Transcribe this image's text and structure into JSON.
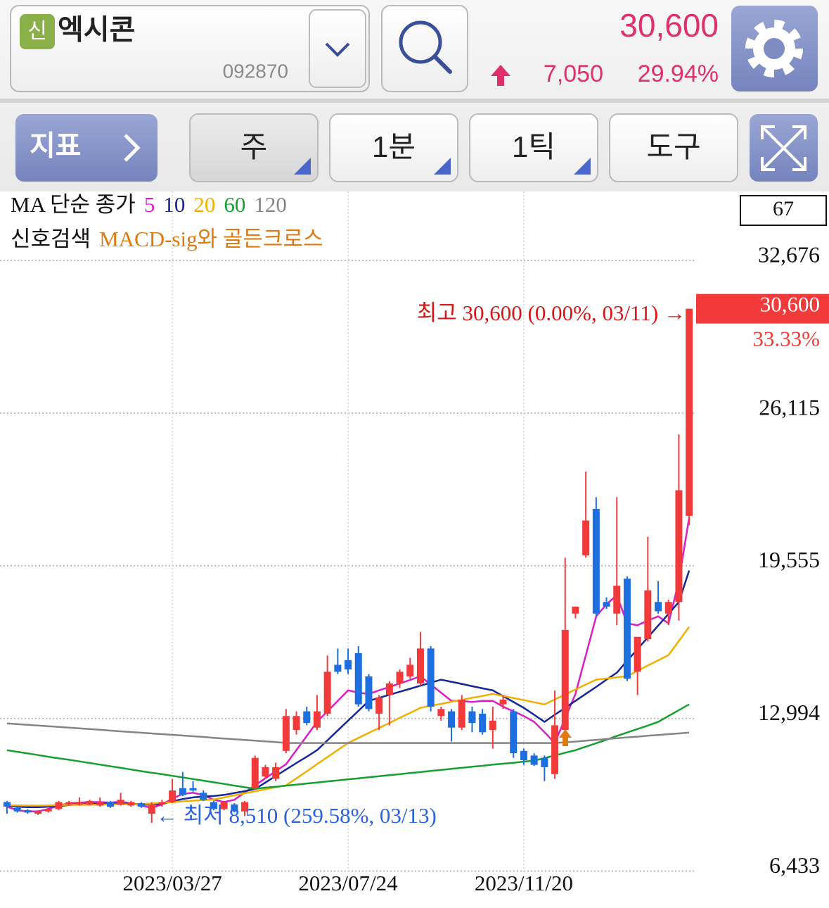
{
  "header": {
    "badge": "신",
    "name": "엑시콘",
    "code": "092870",
    "price": "30,600",
    "change": "7,050",
    "change_rate": "29.94%"
  },
  "toolbar": {
    "indicator": "지표",
    "buttons": [
      "주",
      "1분",
      "1틱",
      "도구"
    ]
  },
  "chart_data": {
    "type": "candlestick",
    "ma_label": "MA 단순 종가",
    "signal_label": "신호검색",
    "signal_name": "MACD-sig와 골든크로스",
    "visible_count": 67,
    "high_label": "최고 30,600 (0.00%, 03/11) →",
    "low_label": "← 최저 8,510 (259.58%, 03/13)",
    "last_price": {
      "value": 30600,
      "label": "30,600"
    },
    "last_change": "33.33%",
    "up_color": "#f23a3a",
    "down_color": "#1d6fe0",
    "grid": true,
    "ylim": [
      5000,
      35640
    ],
    "yticks": [
      {
        "value": 32676,
        "label": "32,676"
      },
      {
        "value": 26115,
        "label": "26,115"
      },
      {
        "value": 19555,
        "label": "19,555"
      },
      {
        "value": 12994,
        "label": "12,994"
      },
      {
        "value": 6433,
        "label": "6,433"
      }
    ],
    "categories": [
      null,
      null,
      null,
      null,
      null,
      null,
      null,
      null,
      null,
      null,
      null,
      null,
      null,
      null,
      null,
      null,
      "2023/03/27",
      null,
      null,
      null,
      null,
      null,
      null,
      null,
      null,
      null,
      null,
      null,
      null,
      null,
      null,
      null,
      null,
      "2023/07/24",
      null,
      null,
      null,
      null,
      null,
      null,
      null,
      null,
      null,
      null,
      null,
      null,
      null,
      null,
      null,
      null,
      "2023/11/20",
      null,
      null,
      null,
      null,
      null,
      null,
      null,
      null,
      null,
      null,
      null,
      null,
      null,
      null,
      null,
      null
    ],
    "open": [
      9400,
      9150,
      9050,
      8900,
      9000,
      9100,
      9300,
      9300,
      9300,
      9250,
      9400,
      9300,
      9250,
      9350,
      8900,
      9300,
      9400,
      10000,
      10000,
      9800,
      9400,
      9100,
      9300,
      9000,
      10000,
      10500,
      10400,
      11600,
      12500,
      13300,
      12600,
      13200,
      15300,
      15500,
      15800,
      14800,
      13200,
      14000,
      14500,
      14800,
      14500,
      16000,
      13100,
      13300,
      12600,
      13300,
      13200,
      12500,
      13600,
      13300,
      11600,
      11400,
      11300,
      10600,
      12500,
      17500,
      20000,
      22000,
      18000,
      17500,
      19000,
      15000,
      16400,
      18000,
      17500,
      18000,
      21700
    ],
    "high": [
      9450,
      9200,
      9100,
      9050,
      9150,
      9450,
      9450,
      9600,
      9500,
      9600,
      9450,
      9800,
      9450,
      9400,
      9400,
      9500,
      10400,
      10700,
      10300,
      9900,
      9450,
      9450,
      9350,
      9450,
      11400,
      11000,
      11100,
      13400,
      13300,
      13500,
      14000,
      15700,
      16000,
      16000,
      16100,
      14900,
      14000,
      14600,
      15100,
      15600,
      16700,
      16100,
      13500,
      13400,
      14000,
      13500,
      13400,
      13500,
      14000,
      13400,
      11700,
      11500,
      11400,
      14200,
      19900,
      17800,
      23600,
      22500,
      18200,
      22500,
      19100,
      16500,
      20800,
      18900,
      18100,
      25200,
      30600
    ],
    "low": [
      8900,
      8950,
      8900,
      8850,
      8950,
      9050,
      9250,
      9250,
      9250,
      9200,
      9150,
      9250,
      9200,
      9150,
      8510,
      9200,
      9350,
      9650,
      9850,
      9450,
      9050,
      9050,
      8950,
      8800,
      9950,
      10400,
      10300,
      11500,
      12300,
      12700,
      12500,
      13100,
      14900,
      14900,
      13500,
      13300,
      12500,
      12700,
      14300,
      14700,
      14400,
      13300,
      12900,
      12000,
      12500,
      12400,
      12300,
      11700,
      13400,
      11300,
      11000,
      10950,
      10300,
      10400,
      12300,
      17300,
      19900,
      17400,
      17700,
      17000,
      14600,
      14000,
      16300,
      17500,
      17000,
      17200,
      21300
    ],
    "close": [
      9200,
      9000,
      8950,
      9000,
      9100,
      9400,
      9400,
      9400,
      9450,
      9400,
      9200,
      9500,
      9400,
      9200,
      9300,
      9400,
      9900,
      9700,
      9900,
      9500,
      9100,
      9400,
      9000,
      9400,
      11300,
      10900,
      10900,
      13100,
      13100,
      12800,
      13300,
      15000,
      15000,
      15100,
      13600,
      13400,
      13900,
      14500,
      15000,
      15300,
      16000,
      13500,
      13400,
      12600,
      13800,
      12800,
      12400,
      12900,
      13800,
      11500,
      11200,
      11000,
      10900,
      12700,
      16800,
      17800,
      21500,
      17500,
      17800,
      18700,
      14700,
      16500,
      18500,
      17600,
      18000,
      22800,
      30600
    ],
    "series": [
      {
        "name": "5",
        "color": "#d81fc8",
        "values": [
          9200,
          9050,
          9000,
          9000,
          9100,
          9250,
          9350,
          9380,
          9400,
          9400,
          9380,
          9420,
          9350,
          9250,
          9150,
          9300,
          9550,
          9750,
          9800,
          9700,
          9500,
          9400,
          9500,
          9815,
          10120,
          10420,
          10730,
          11030,
          11640,
          12240,
          12850,
          13300,
          13750,
          14200,
          14100,
          14050,
          14200,
          14350,
          14500,
          14650,
          14810,
          14450,
          14100,
          13750,
          13750,
          13700,
          13750,
          13750,
          13500,
          13300,
          13100,
          12850,
          12400,
          11940,
          13000,
          14050,
          15700,
          17380,
          17900,
          18290,
          17080,
          17000,
          17200,
          17380,
          17080,
          18900,
          21620
        ]
      },
      {
        "name": "10",
        "color": "#16269a",
        "values": [
          9250,
          9200,
          9180,
          9180,
          9200,
          9230,
          9270,
          9300,
          9320,
          9330,
          9340,
          9340,
          9330,
          9300,
          9280,
          9320,
          9430,
          9530,
          9600,
          9640,
          9660,
          9710,
          9790,
          9870,
          9960,
          10240,
          10520,
          10800,
          11080,
          11350,
          11630,
          12050,
          12480,
          12900,
          13320,
          13750,
          13880,
          14010,
          14140,
          14270,
          14400,
          14530,
          14660,
          14570,
          14480,
          14380,
          14290,
          14200,
          13950,
          13700,
          13450,
          13150,
          12850,
          13150,
          13450,
          13750,
          14050,
          14350,
          14660,
          14960,
          15470,
          15970,
          16480,
          16980,
          17490,
          17990,
          19350
        ]
      },
      {
        "name": "20",
        "color": "#f0b000",
        "values": [
          9270,
          9260,
          9250,
          9250,
          9260,
          9270,
          9280,
          9280,
          9290,
          9290,
          9300,
          9300,
          9300,
          9310,
          9340,
          9370,
          9400,
          9430,
          9460,
          9490,
          9510,
          9600,
          9690,
          9780,
          9860,
          9950,
          10040,
          10120,
          10420,
          10720,
          11030,
          11330,
          11640,
          11940,
          12160,
          12370,
          12590,
          12800,
          13020,
          13230,
          13450,
          13540,
          13620,
          13710,
          13790,
          13880,
          13960,
          14050,
          13960,
          13870,
          13780,
          13690,
          13600,
          13810,
          14020,
          14240,
          14450,
          14660,
          14710,
          14760,
          14810,
          15040,
          15270,
          15490,
          15720,
          16320,
          16930
        ]
      },
      {
        "name": "60",
        "color": "#16a030",
        "values": [
          11630,
          11560,
          11490,
          11420,
          11350,
          11280,
          11220,
          11150,
          11080,
          11010,
          10940,
          10870,
          10800,
          10730,
          10660,
          10600,
          10530,
          10460,
          10390,
          10320,
          10250,
          10180,
          10110,
          10040,
          9970,
          10020,
          10060,
          10110,
          10150,
          10200,
          10240,
          10290,
          10330,
          10380,
          10420,
          10470,
          10510,
          10560,
          10600,
          10650,
          10690,
          10740,
          10780,
          10830,
          10870,
          10920,
          10960,
          11010,
          11050,
          11090,
          11140,
          11180,
          11290,
          11400,
          11520,
          11630,
          11780,
          11930,
          12080,
          12240,
          12390,
          12540,
          12690,
          12845,
          13100,
          13350,
          13600
        ]
      },
      {
        "name": "120",
        "color": "#858585",
        "values": [
          12780,
          12750,
          12720,
          12690,
          12660,
          12630,
          12600,
          12570,
          12540,
          12510,
          12470,
          12440,
          12410,
          12380,
          12350,
          12320,
          12290,
          12260,
          12230,
          12200,
          12160,
          12130,
          12100,
          12070,
          12040,
          12010,
          11980,
          11940,
          11940,
          11940,
          11940,
          11940,
          11940,
          11940,
          11940,
          11940,
          11940,
          11940,
          11940,
          11940,
          11940,
          11940,
          11940,
          11940,
          11940,
          11940,
          11940,
          11940,
          11940,
          11940,
          11940,
          11940,
          11940,
          11940,
          11970,
          12000,
          12040,
          12070,
          12110,
          12140,
          12180,
          12210,
          12250,
          12280,
          12320,
          12350,
          12390
        ]
      }
    ]
  }
}
